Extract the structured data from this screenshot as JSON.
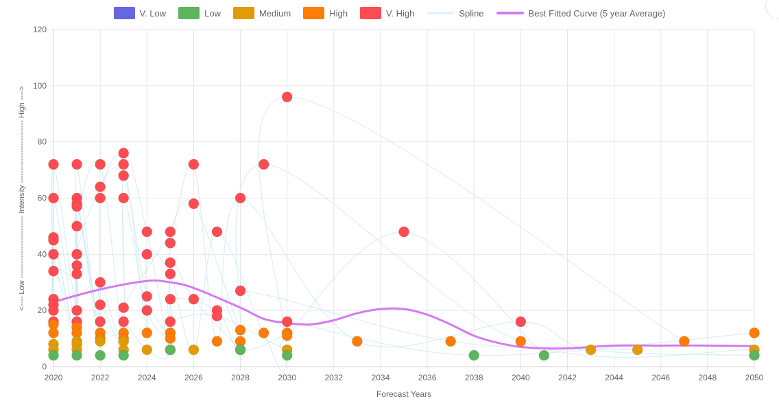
{
  "legend": [
    {
      "label": "V. Low",
      "color": "#6466e3",
      "kind": "box"
    },
    {
      "label": "Low",
      "color": "#5db55e",
      "kind": "box"
    },
    {
      "label": "Medium",
      "color": "#e09c07",
      "kind": "box"
    },
    {
      "label": "High",
      "color": "#ff7c05",
      "kind": "box"
    },
    {
      "label": "V. High",
      "color": "#ff4b52",
      "kind": "box"
    },
    {
      "label": "Spline",
      "color": "#e3f3fc",
      "kind": "line"
    },
    {
      "label": "Best Fitted Curve (5 year Average)",
      "color": "#d57af0",
      "kind": "line"
    }
  ],
  "chart_data": {
    "type": "scatter",
    "xlabel": "Forecast Years",
    "ylabel": "<---- Low ------------------------- Intensity ------------------------- High ---->",
    "xlim": [
      2020,
      2050
    ],
    "ylim": [
      0,
      120
    ],
    "x_ticks": [
      "2020",
      "2022",
      "2024",
      "2026",
      "2028",
      "2030",
      "2032",
      "2034",
      "2036",
      "2038",
      "2040",
      "2042",
      "2044",
      "2046",
      "2048",
      "2050"
    ],
    "y_ticks": [
      "0",
      "20",
      "40",
      "60",
      "80",
      "100",
      "120"
    ],
    "grid": true,
    "legend_position": "top",
    "series": [
      {
        "name": "V. High",
        "color": "#ff4b52",
        "points": [
          [
            2020,
            72
          ],
          [
            2020,
            60
          ],
          [
            2020,
            46
          ],
          [
            2020,
            45
          ],
          [
            2020,
            40
          ],
          [
            2020,
            34
          ],
          [
            2020,
            24
          ],
          [
            2020,
            22
          ],
          [
            2020,
            20
          ],
          [
            2020,
            16
          ],
          [
            2021,
            72
          ],
          [
            2021,
            60
          ],
          [
            2021,
            58
          ],
          [
            2021,
            57
          ],
          [
            2021,
            50
          ],
          [
            2021,
            40
          ],
          [
            2021,
            36
          ],
          [
            2021,
            33
          ],
          [
            2021,
            20
          ],
          [
            2021,
            16
          ],
          [
            2022,
            72
          ],
          [
            2022,
            64
          ],
          [
            2022,
            60
          ],
          [
            2022,
            30
          ],
          [
            2022,
            22
          ],
          [
            2022,
            16
          ],
          [
            2023,
            76
          ],
          [
            2023,
            72
          ],
          [
            2023,
            68
          ],
          [
            2023,
            60
          ],
          [
            2023,
            21
          ],
          [
            2023,
            16
          ],
          [
            2024,
            48
          ],
          [
            2024,
            40
          ],
          [
            2024,
            25
          ],
          [
            2024,
            20
          ],
          [
            2025,
            48
          ],
          [
            2025,
            44
          ],
          [
            2025,
            37
          ],
          [
            2025,
            33
          ],
          [
            2025,
            24
          ],
          [
            2025,
            16
          ],
          [
            2026,
            72
          ],
          [
            2026,
            58
          ],
          [
            2026,
            24
          ],
          [
            2027,
            48
          ],
          [
            2027,
            20
          ],
          [
            2027,
            18
          ],
          [
            2028,
            60
          ],
          [
            2028,
            27
          ],
          [
            2029,
            72
          ],
          [
            2030,
            96
          ],
          [
            2030,
            16
          ],
          [
            2035,
            48
          ],
          [
            2040,
            16
          ]
        ]
      },
      {
        "name": "High",
        "color": "#ff7c05",
        "points": [
          [
            2020,
            15
          ],
          [
            2020,
            12
          ],
          [
            2021,
            14
          ],
          [
            2021,
            12
          ],
          [
            2022,
            12
          ],
          [
            2022,
            10
          ],
          [
            2023,
            12
          ],
          [
            2023,
            10
          ],
          [
            2024,
            12
          ],
          [
            2025,
            12
          ],
          [
            2025,
            10
          ],
          [
            2027,
            9
          ],
          [
            2028,
            13
          ],
          [
            2028,
            9
          ],
          [
            2029,
            12
          ],
          [
            2030,
            12
          ],
          [
            2030,
            11
          ],
          [
            2033,
            9
          ],
          [
            2037,
            9
          ],
          [
            2040,
            9
          ],
          [
            2047,
            9
          ],
          [
            2050,
            12
          ]
        ]
      },
      {
        "name": "Medium",
        "color": "#e09c07",
        "points": [
          [
            2020,
            8
          ],
          [
            2020,
            6
          ],
          [
            2021,
            9
          ],
          [
            2021,
            8
          ],
          [
            2021,
            6
          ],
          [
            2022,
            9
          ],
          [
            2023,
            9
          ],
          [
            2023,
            6
          ],
          [
            2024,
            6
          ],
          [
            2025,
            6
          ],
          [
            2026,
            6
          ],
          [
            2028,
            6
          ],
          [
            2030,
            6
          ],
          [
            2043,
            6
          ],
          [
            2045,
            6
          ],
          [
            2050,
            6
          ]
        ]
      },
      {
        "name": "Low",
        "color": "#5db55e",
        "points": [
          [
            2020,
            4
          ],
          [
            2021,
            4
          ],
          [
            2022,
            4
          ],
          [
            2023,
            4
          ],
          [
            2025,
            6
          ],
          [
            2028,
            6
          ],
          [
            2030,
            4
          ],
          [
            2038,
            4
          ],
          [
            2041,
            4
          ],
          [
            2050,
            4
          ]
        ]
      },
      {
        "name": "V. Low",
        "color": "#6466e3",
        "points": []
      }
    ],
    "spline_color": "#cfeaf7",
    "best_fit": {
      "name": "Best Fitted Curve (5 year Average)",
      "color": "#d57af0",
      "points": [
        [
          2020,
          23
        ],
        [
          2022,
          27.5
        ],
        [
          2024,
          30.5
        ],
        [
          2025,
          30
        ],
        [
          2026,
          28
        ],
        [
          2028,
          21
        ],
        [
          2029,
          17
        ],
        [
          2030,
          15.5
        ],
        [
          2031,
          15
        ],
        [
          2032,
          16.5
        ],
        [
          2033,
          19
        ],
        [
          2034,
          20.5
        ],
        [
          2035,
          20.5
        ],
        [
          2036,
          18.5
        ],
        [
          2037,
          15
        ],
        [
          2038,
          11
        ],
        [
          2039,
          8.5
        ],
        [
          2040,
          7
        ],
        [
          2041,
          6.5
        ],
        [
          2042,
          6.5
        ],
        [
          2043,
          7
        ],
        [
          2044,
          7.5
        ],
        [
          2046,
          7.5
        ],
        [
          2048,
          7.5
        ],
        [
          2050,
          7.3
        ]
      ]
    }
  }
}
